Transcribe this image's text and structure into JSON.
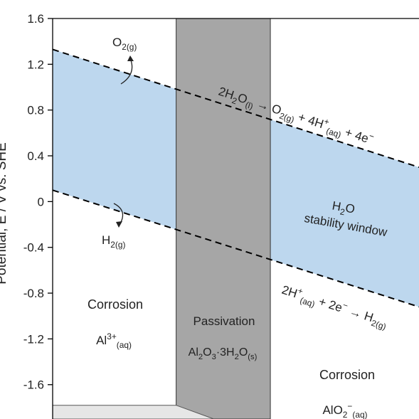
{
  "chart_data": {
    "type": "line",
    "y_label": "Potential, E / V vs. SHE",
    "ylim": [
      -1.9,
      1.6
    ],
    "xlim": [
      -1.7,
      15.8
    ],
    "yticks": [
      1.6,
      1.2,
      0.8,
      0.4,
      0,
      -0.4,
      -0.8,
      -1.2,
      -1.6
    ],
    "x": [
      -1.7,
      15.8
    ],
    "window_color": "#bdd7ee",
    "series": [
      {
        "color": "#000000",
        "values": [
          1.33,
          0.3
        ]
      },
      {
        "color": "#000000",
        "values": [
          0.1,
          -0.92
        ]
      }
    ],
    "passivation": {
      "x": [
        4.2,
        8.7
      ],
      "color": "#a6a6a6"
    },
    "immunity": {
      "x": [
        -1.7,
        4.2,
        6.0
      ],
      "values": [
        -1.78,
        -1.78,
        -1.9
      ],
      "color": "#e6e6e6"
    },
    "annotations": [
      {
        "parts": [
          {
            "text": "O",
            "style": "normal"
          },
          {
            "text": "2(g)",
            "style": "sub"
          }
        ]
      },
      {
        "parts": [
          {
            "text": "H",
            "style": "normal"
          },
          {
            "text": "2(g)",
            "style": "sub"
          }
        ]
      },
      {
        "parts": [
          {
            "text": "2H",
            "style": "normal"
          },
          {
            "text": "2",
            "style": "sub"
          },
          {
            "text": "O",
            "style": "normal"
          },
          {
            "text": "(l)",
            "style": "sub"
          },
          {
            "text": " → O",
            "style": "normal"
          },
          {
            "text": "2(g)",
            "style": "sub"
          },
          {
            "text": " + 4H",
            "style": "normal"
          },
          {
            "text": "+",
            "style": "sup"
          },
          {
            "text": "(aq)",
            "style": "sub"
          },
          {
            "text": " + 4e",
            "style": "normal"
          },
          {
            "text": "−",
            "style": "sup"
          }
        ]
      },
      {
        "parts": [
          {
            "text": "H",
            "style": "normal"
          },
          {
            "text": "2",
            "style": "sub"
          },
          {
            "text": "O",
            "style": "normal"
          }
        ]
      },
      {
        "parts": [
          {
            "text": "stability window",
            "style": "normal"
          }
        ]
      },
      {
        "parts": [
          {
            "text": "2H",
            "style": "normal"
          },
          {
            "text": "+",
            "style": "sup"
          },
          {
            "text": "(aq)",
            "style": "sub"
          },
          {
            "text": " + 2e",
            "style": "normal"
          },
          {
            "text": "−",
            "style": "sup"
          },
          {
            "text": " → H",
            "style": "normal"
          },
          {
            "text": "2(g)",
            "style": "sub"
          }
        ]
      },
      {
        "parts": [
          {
            "text": "Corrosion",
            "style": "normal"
          }
        ]
      },
      {
        "parts": [
          {
            "text": "Al",
            "style": "normal"
          },
          {
            "text": "3+",
            "style": "sup"
          },
          {
            "text": "(aq)",
            "style": "sub"
          }
        ]
      },
      {
        "parts": [
          {
            "text": "Passivation",
            "style": "normal"
          }
        ]
      },
      {
        "parts": [
          {
            "text": "Al",
            "style": "normal"
          },
          {
            "text": "2",
            "style": "sub"
          },
          {
            "text": "O",
            "style": "normal"
          },
          {
            "text": "3",
            "style": "sub"
          },
          {
            "text": "·3H",
            "style": "normal"
          },
          {
            "text": "2",
            "style": "sub"
          },
          {
            "text": "O",
            "style": "normal"
          },
          {
            "text": "(s)",
            "style": "sub"
          }
        ]
      },
      {
        "parts": [
          {
            "text": "Corrosion",
            "style": "normal"
          }
        ]
      },
      {
        "parts": [
          {
            "text": "AlO",
            "style": "normal"
          },
          {
            "text": "2",
            "style": "sub"
          },
          {
            "text": "−",
            "style": "sup"
          },
          {
            "text": "(aq)",
            "style": "sub"
          }
        ]
      }
    ]
  }
}
